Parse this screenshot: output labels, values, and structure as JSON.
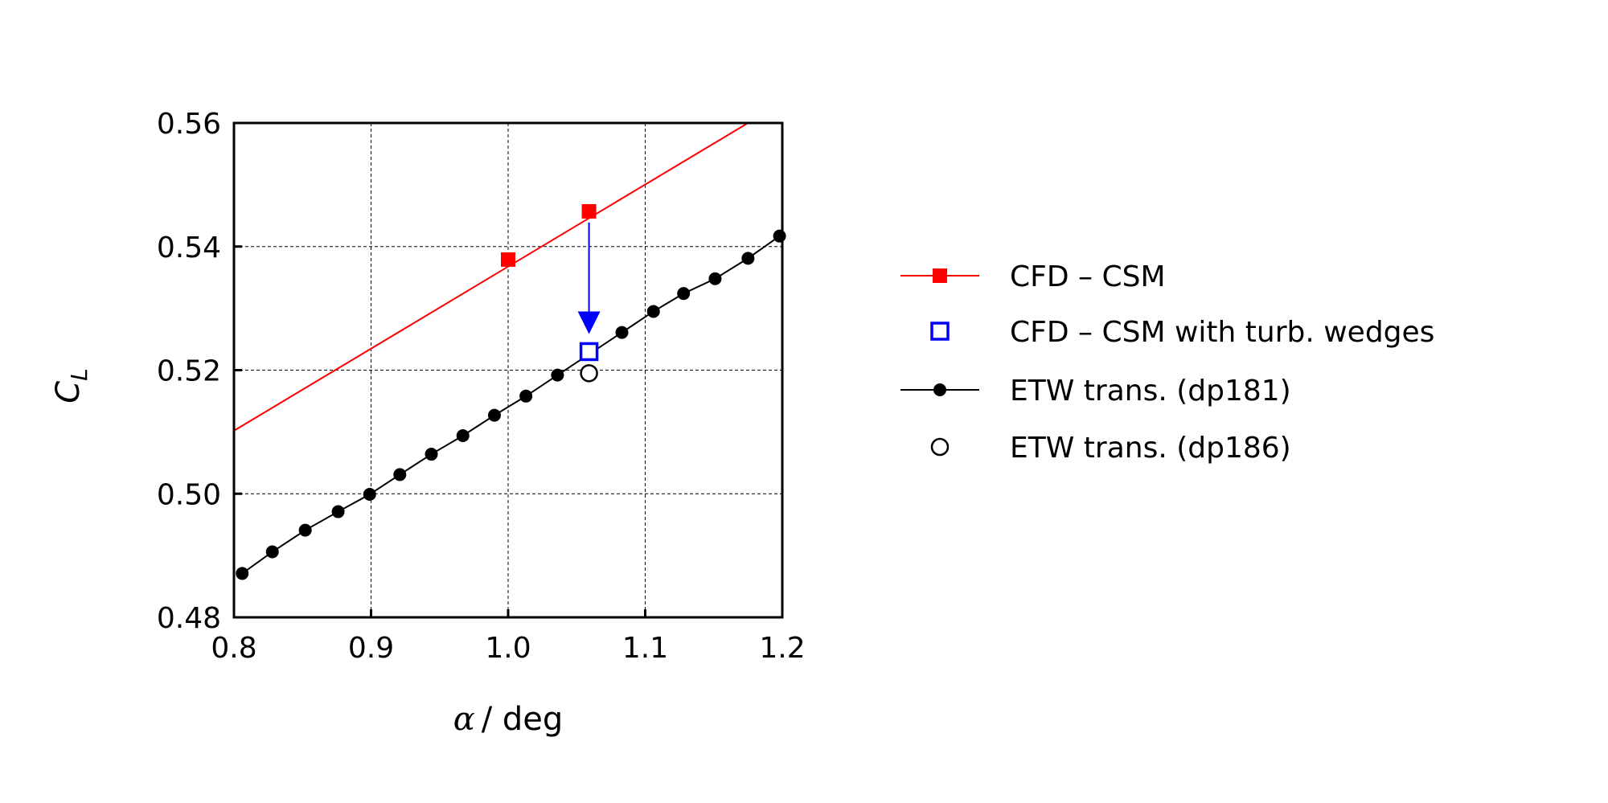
{
  "chart_data": {
    "type": "line",
    "xlabel_symbol": "α",
    "xlabel_unit": "/ deg",
    "ylabel_main": "C",
    "ylabel_sub": "L",
    "xlim": [
      0.8,
      1.2
    ],
    "ylim": [
      0.48,
      0.56
    ],
    "xticks": [
      "0.8",
      "0.9",
      "1.0",
      "1.1",
      "1.2"
    ],
    "yticks": [
      "0.48",
      "0.50",
      "0.52",
      "0.54",
      "0.56"
    ],
    "grid": true,
    "legend_position": "right",
    "series": [
      {
        "name": "CFD – CSM",
        "color": "#ff0000",
        "marker": "filled-square",
        "line": true,
        "fit_line": [
          [
            0.8,
            0.5102
          ],
          [
            1.175,
            0.56
          ]
        ],
        "x": [
          1.0,
          1.059
        ],
        "y": [
          0.5379,
          0.5457
        ]
      },
      {
        "name": "CFD – CSM with turb. wedges",
        "color": "#0000ff",
        "marker": "open-square",
        "line": false,
        "x": [
          1.059
        ],
        "y": [
          0.523
        ]
      },
      {
        "name": "ETW trans. (dp181)",
        "color": "#000000",
        "marker": "filled-circle",
        "line": true,
        "x": [
          0.806,
          0.828,
          0.852,
          0.876,
          0.899,
          0.921,
          0.944,
          0.967,
          0.99,
          1.013,
          1.036,
          1.083,
          1.106,
          1.128,
          1.151,
          1.175,
          1.198
        ],
        "y": [
          0.4871,
          0.4906,
          0.4941,
          0.4971,
          0.4999,
          0.5031,
          0.5064,
          0.5094,
          0.5127,
          0.5158,
          0.5192,
          0.5261,
          0.5295,
          0.5324,
          0.5348,
          0.5381,
          0.5417
        ]
      },
      {
        "name": "ETW trans. (dp186)",
        "color": "#000000",
        "marker": "open-circle",
        "line": false,
        "x": [
          1.059
        ],
        "y": [
          0.5195
        ]
      }
    ],
    "annotations": [
      {
        "type": "arrow",
        "color": "#0000ff",
        "from": [
          1.059,
          0.5457
        ],
        "to": [
          1.059,
          0.523
        ]
      }
    ]
  }
}
